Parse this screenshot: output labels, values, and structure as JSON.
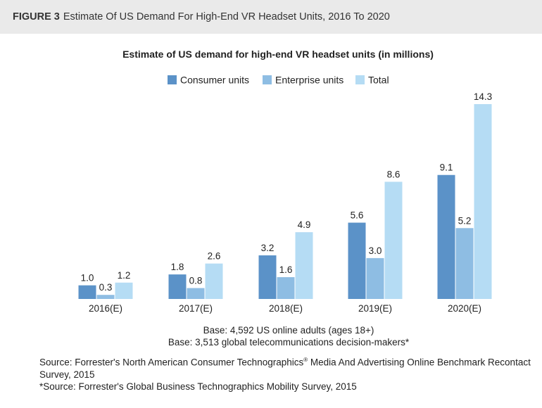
{
  "figure": {
    "number": "FIGURE 3",
    "title": "Estimate Of US Demand For High-End VR Headset Units, 2016 To 2020"
  },
  "chart_data": {
    "type": "bar",
    "title": "Estimate of US demand for high-end VR headset units (in millions)",
    "categories": [
      "2016(E)",
      "2017(E)",
      "2018(E)",
      "2019(E)",
      "2020(E)"
    ],
    "series": [
      {
        "name": "Consumer units",
        "values": [
          1.0,
          1.8,
          3.2,
          5.6,
          9.1
        ],
        "labels": [
          "1.0",
          "1.8",
          "3.2",
          "5.6",
          "9.1"
        ],
        "color": "#5b92c8"
      },
      {
        "name": "Enterprise units",
        "values": [
          0.3,
          0.8,
          1.6,
          3.0,
          5.2
        ],
        "labels": [
          "0.3",
          "0.8",
          "1.6",
          "3.0",
          "5.2"
        ],
        "color": "#8ebde3"
      },
      {
        "name": "Total",
        "values": [
          1.2,
          2.6,
          4.9,
          8.6,
          14.3
        ],
        "labels": [
          "1.2",
          "2.6",
          "4.9",
          "8.6",
          "14.3"
        ],
        "color": "#b5dcf4"
      }
    ],
    "ylim": [
      0,
      14.3
    ],
    "grid": false,
    "legend_position": "top-center"
  },
  "notes": {
    "base1": "Base: 4,592 US online adults (ages 18+)",
    "base2": "Base: 3,513 global telecommunications decision-makers*",
    "source1_part1": "Source: Forrester's North American Consumer Technographics",
    "source1_sup": "®",
    "source1_part2": " Media And Advertising Online Benchmark Recontact Survey, 2015",
    "source2": "*Source: Forrester's Global Business Technographics Mobility Survey, 2015"
  }
}
